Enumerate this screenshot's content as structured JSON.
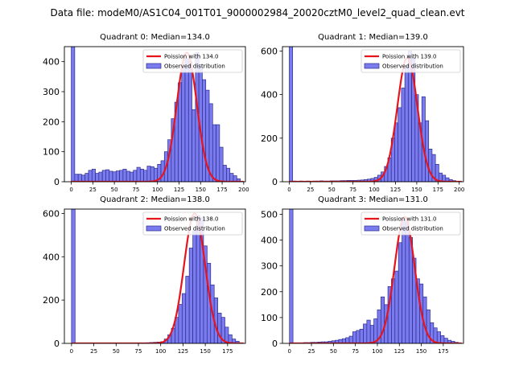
{
  "figure": {
    "suptitle": "Data file: modeM0/AS1C04_001T01_9000002984_20020cztM0_level2_quad_clean.evt",
    "colors": {
      "bar_fill": "#7b7bf0",
      "bar_edge": "#2b2b8c",
      "curve": "#e8141c",
      "axis": "#000000"
    }
  },
  "chart_data": [
    {
      "type": "bar",
      "title": "Quadrant 0: Median=134.0",
      "xlim": [
        -8,
        202
      ],
      "ylim": [
        0,
        450
      ],
      "xticks": [
        0,
        25,
        50,
        75,
        100,
        125,
        150,
        175,
        200
      ],
      "yticks": [
        0,
        100,
        200,
        300,
        400
      ],
      "legend": {
        "position": "top-right",
        "entries": [
          "Poission with 134.0",
          "Observed distribution"
        ]
      },
      "bin_width": 4,
      "bins": [
        0,
        4,
        8,
        12,
        16,
        20,
        24,
        28,
        32,
        36,
        40,
        44,
        48,
        52,
        56,
        60,
        64,
        68,
        72,
        76,
        80,
        84,
        88,
        92,
        96,
        100,
        104,
        108,
        112,
        116,
        120,
        124,
        128,
        132,
        136,
        140,
        144,
        148,
        152,
        156,
        160,
        164,
        168,
        172,
        176,
        180,
        184,
        188,
        192
      ],
      "counts": [
        450,
        25,
        25,
        22,
        28,
        38,
        42,
        28,
        32,
        38,
        40,
        35,
        33,
        36,
        38,
        42,
        35,
        32,
        38,
        48,
        42,
        38,
        52,
        50,
        45,
        58,
        70,
        100,
        140,
        210,
        265,
        330,
        380,
        410,
        400,
        240,
        430,
        390,
        340,
        305,
        260,
        190,
        190,
        115,
        55,
        45,
        28,
        20,
        10
      ],
      "curve": {
        "label": "Poission with 134.0",
        "mean": 134.0,
        "peak": 430
      }
    },
    {
      "type": "bar",
      "title": "Quadrant 1: Median=139.0",
      "xlim": [
        -8,
        205
      ],
      "ylim": [
        0,
        620
      ],
      "xticks": [
        0,
        25,
        50,
        75,
        100,
        125,
        150,
        175,
        200
      ],
      "yticks": [
        0,
        200,
        400,
        600
      ],
      "legend": {
        "position": "top-right",
        "entries": [
          "Poission with 139.0",
          "Observed distribution"
        ]
      },
      "bin_width": 4,
      "bins": [
        0,
        4,
        8,
        12,
        16,
        20,
        24,
        28,
        32,
        36,
        40,
        44,
        48,
        52,
        56,
        60,
        64,
        68,
        72,
        76,
        80,
        84,
        88,
        92,
        96,
        100,
        104,
        108,
        112,
        116,
        120,
        124,
        128,
        132,
        136,
        140,
        144,
        148,
        152,
        156,
        160,
        164,
        168,
        172,
        176,
        180,
        184,
        188,
        192,
        196
      ],
      "counts": [
        620,
        3,
        2,
        3,
        2,
        3,
        2,
        3,
        3,
        4,
        3,
        3,
        4,
        4,
        4,
        5,
        5,
        6,
        6,
        6,
        7,
        8,
        10,
        12,
        15,
        20,
        30,
        45,
        70,
        110,
        200,
        270,
        340,
        430,
        530,
        600,
        570,
        400,
        270,
        390,
        280,
        150,
        125,
        80,
        40,
        30,
        18,
        10,
        5,
        2
      ],
      "curve": {
        "label": "Poission with 139.0",
        "mean": 139.0,
        "peak": 570
      }
    },
    {
      "type": "bar",
      "title": "Quadrant 2: Median=138.0",
      "xlim": [
        -8,
        195
      ],
      "ylim": [
        0,
        620
      ],
      "xticks": [
        0,
        25,
        50,
        75,
        100,
        125,
        150,
        175
      ],
      "yticks": [
        0,
        200,
        400,
        600
      ],
      "legend": {
        "position": "top-right",
        "entries": [
          "Poission with 138.0",
          "Observed distribution"
        ]
      },
      "bin_width": 4,
      "bins": [
        0,
        4,
        8,
        12,
        16,
        20,
        24,
        28,
        32,
        36,
        40,
        44,
        48,
        52,
        56,
        60,
        64,
        68,
        72,
        76,
        80,
        84,
        88,
        92,
        96,
        100,
        104,
        108,
        112,
        116,
        120,
        124,
        128,
        132,
        136,
        140,
        144,
        148,
        152,
        156,
        160,
        164,
        168,
        172,
        176,
        180,
        184
      ],
      "counts": [
        620,
        1,
        1,
        1,
        1,
        1,
        1,
        1,
        1,
        1,
        1,
        1,
        1,
        1,
        1,
        1,
        1,
        1,
        1,
        1,
        2,
        3,
        4,
        5,
        6,
        8,
        20,
        40,
        70,
        120,
        180,
        230,
        310,
        440,
        520,
        590,
        580,
        450,
        370,
        270,
        210,
        140,
        120,
        75,
        40,
        20,
        10
      ],
      "curve": {
        "label": "Poission with 138.0",
        "mean": 138.0,
        "peak": 600
      }
    },
    {
      "type": "bar",
      "title": "Quadrant 3: Median=131.0",
      "xlim": [
        -8,
        198
      ],
      "ylim": [
        0,
        520
      ],
      "xticks": [
        0,
        25,
        50,
        75,
        100,
        125,
        150,
        175
      ],
      "yticks": [
        0,
        100,
        200,
        300,
        400,
        500
      ],
      "legend": {
        "position": "top-right",
        "entries": [
          "Poission with 131.0",
          "Observed distribution"
        ]
      },
      "bin_width": 4,
      "bins": [
        0,
        4,
        8,
        12,
        16,
        20,
        24,
        28,
        32,
        36,
        40,
        44,
        48,
        52,
        56,
        60,
        64,
        68,
        72,
        76,
        80,
        84,
        88,
        92,
        96,
        100,
        104,
        108,
        112,
        116,
        120,
        124,
        128,
        132,
        136,
        140,
        144,
        148,
        152,
        156,
        160,
        164,
        168,
        172,
        176,
        180,
        184,
        188
      ],
      "counts": [
        520,
        2,
        2,
        2,
        3,
        3,
        4,
        4,
        5,
        6,
        6,
        8,
        10,
        12,
        15,
        18,
        22,
        28,
        45,
        50,
        55,
        75,
        90,
        70,
        95,
        130,
        180,
        150,
        220,
        250,
        280,
        390,
        480,
        470,
        410,
        330,
        250,
        230,
        180,
        130,
        80,
        60,
        45,
        30,
        20,
        12,
        8,
        4
      ],
      "curve": {
        "label": "Poission with 131.0",
        "mean": 131.0,
        "peak": 490
      }
    }
  ]
}
